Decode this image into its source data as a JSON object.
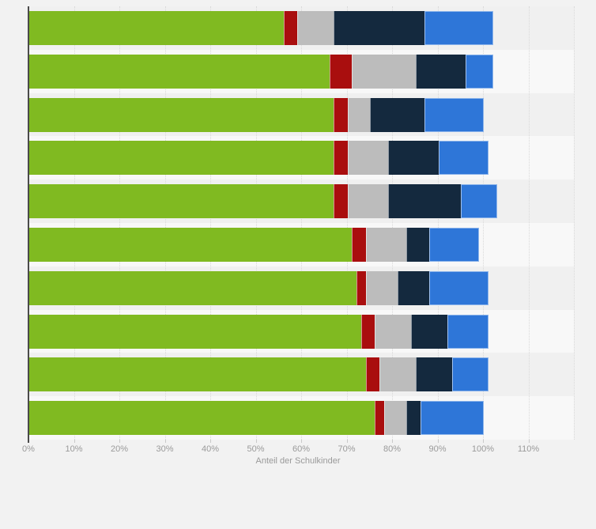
{
  "page": {
    "background_color": "#f2f2f2",
    "row_stripe_dark": "#f0f0f0",
    "row_stripe_light": "#f8f8f8",
    "axis_line_color": "#4a4a4a",
    "gridline_color": "#d9d9d9",
    "tick_color": "#c9c9c9",
    "label_color": "#9a9a9a"
  },
  "chart_data": {
    "type": "bar",
    "orientation": "horizontal",
    "stacked": true,
    "title": "",
    "xlabel": "Anteil der Schulkinder",
    "ylabel": "",
    "xlim": [
      0,
      120
    ],
    "x_ticks": [
      "0%",
      "10%",
      "20%",
      "30%",
      "40%",
      "50%",
      "60%",
      "70%",
      "80%",
      "90%",
      "100%",
      "110%"
    ],
    "grid": "vertical-dotted",
    "legend": "not-visible",
    "category_labels_visible": false,
    "rows": 10,
    "series": [
      {
        "name": "green-segment",
        "color": "#80ba21",
        "values": [
          56,
          66,
          67,
          67,
          67,
          71,
          72,
          73,
          74,
          76
        ]
      },
      {
        "name": "dark-red-segment",
        "color": "#a90e0e",
        "values": [
          3,
          5,
          3,
          3,
          3,
          3,
          2,
          3,
          3,
          2
        ]
      },
      {
        "name": "gray-segment",
        "color": "#bcbcbc",
        "values": [
          8,
          14,
          5,
          9,
          9,
          9,
          7,
          8,
          8,
          5
        ]
      },
      {
        "name": "navy-segment",
        "color": "#14293e",
        "values": [
          20,
          11,
          12,
          11,
          16,
          5,
          7,
          8,
          8,
          3
        ]
      },
      {
        "name": "blue-segment",
        "color": "#2e76d8",
        "values": [
          15,
          6,
          13,
          11,
          8,
          11,
          13,
          9,
          8,
          14
        ]
      }
    ]
  }
}
